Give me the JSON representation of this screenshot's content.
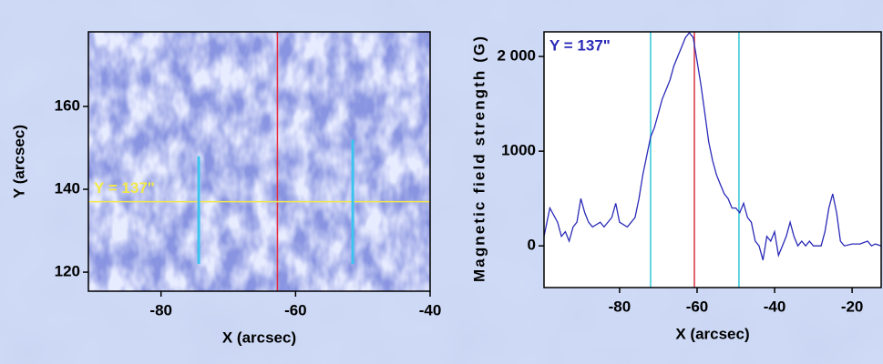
{
  "chart_data": [
    {
      "type": "image",
      "xlabel": "X (arcsec)",
      "ylabel": "Y (arcsec)",
      "xlim": [
        -90.8,
        -40
      ],
      "ylim": [
        115.4,
        178
      ],
      "xticks": [
        -80,
        -60,
        -40
      ],
      "yticks": [
        120,
        140,
        160
      ],
      "annotation": "Y = 137\"",
      "annotation_color": "#f2e84a",
      "vlines": [
        {
          "x": -62.7,
          "color": "#e8283c"
        }
      ],
      "hlines": [
        {
          "y": 137,
          "color": "#f2e84a"
        }
      ],
      "arrows": [
        {
          "x": -74.4,
          "y": [
            148,
            122
          ],
          "color": "#3cc4f0"
        },
        {
          "x": -51.5,
          "y": [
            152,
            122
          ],
          "color": "#3cc4f0"
        }
      ]
    },
    {
      "type": "line",
      "xlabel": "X (arcsec)",
      "ylabel": "Magnetic field strength (G)",
      "xlim": [
        -99.5,
        -12.5
      ],
      "ylim": [
        -440,
        2260
      ],
      "xticks": [
        -80,
        -60,
        -40,
        -20
      ],
      "yticks": [
        0,
        1000,
        {
          "value": 2000,
          "label": "2 000"
        }
      ],
      "annotation": "Y = 137\"",
      "annotation_color": "#2a2ab8",
      "color": "#2a2ab8",
      "x": [
        -99.5,
        -98,
        -96,
        -95,
        -94,
        -93,
        -92,
        -91,
        -90,
        -89,
        -88,
        -87,
        -85,
        -84,
        -82,
        -81,
        -80,
        -78,
        -77,
        -76,
        -75,
        -74,
        -73,
        -72,
        -71,
        -70,
        -69,
        -68,
        -67,
        -66,
        -65,
        -64,
        -63,
        -62,
        -61,
        -60,
        -59,
        -58,
        -57,
        -56,
        -55,
        -54,
        -53,
        -52,
        -51,
        -50,
        -49,
        -48,
        -47,
        -46,
        -45,
        -44,
        -43,
        -42,
        -41,
        -40,
        -39,
        -38,
        -37,
        -36,
        -35,
        -34,
        -33,
        -32,
        -31,
        -30,
        -28,
        -27,
        -26,
        -25,
        -24,
        -23,
        -22,
        -20,
        -18,
        -16,
        -15,
        -14,
        -12.5
      ],
      "values": [
        100,
        400,
        250,
        100,
        150,
        50,
        200,
        250,
        500,
        350,
        250,
        200,
        250,
        200,
        300,
        450,
        250,
        200,
        250,
        300,
        500,
        750,
        950,
        1150,
        1250,
        1400,
        1550,
        1650,
        1750,
        1900,
        2000,
        2100,
        2200,
        2250,
        2200,
        1950,
        1700,
        1400,
        1100,
        900,
        750,
        650,
        550,
        500,
        400,
        400,
        350,
        450,
        300,
        250,
        50,
        0,
        -150,
        100,
        50,
        150,
        -100,
        0,
        100,
        250,
        100,
        0,
        50,
        0,
        50,
        0,
        0,
        150,
        400,
        550,
        350,
        50,
        0,
        20,
        20,
        50,
        0,
        20,
        0
      ],
      "vlines": [
        {
          "x": -72,
          "color": "#30c8d8"
        },
        {
          "x": -60.7,
          "color": "#d83040"
        },
        {
          "x": -49.2,
          "color": "#30c8d8"
        }
      ]
    }
  ]
}
